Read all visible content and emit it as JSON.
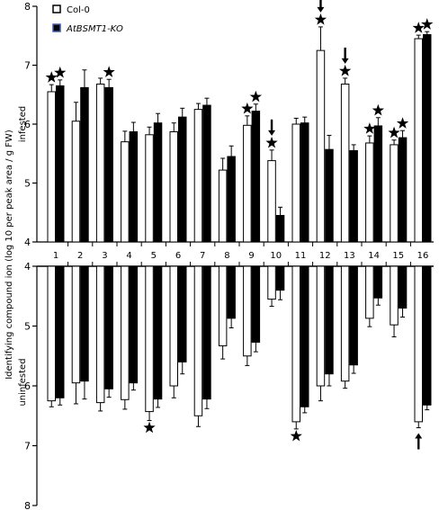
{
  "chart_data": {
    "type": "bar",
    "ylabel": "Identifying compound ion (log 10 per peak area / g FW)",
    "ylim": [
      4,
      8
    ],
    "y_ticks": [
      4,
      5,
      6,
      7,
      8
    ],
    "categories": [
      "1",
      "2",
      "3",
      "4",
      "5",
      "6",
      "7",
      "8",
      "9",
      "10",
      "11",
      "12",
      "13",
      "14",
      "15",
      "16"
    ],
    "panels": [
      {
        "label": "infested",
        "series": [
          {
            "name": "Col-0",
            "color": "#ffffff",
            "values": [
              6.55,
              6.05,
              6.68,
              5.7,
              5.82,
              5.87,
              6.25,
              5.22,
              5.98,
              5.38,
              6.0,
              7.25,
              6.68,
              5.68,
              5.65,
              7.45
            ],
            "errors": [
              0.12,
              0.32,
              0.1,
              0.18,
              0.13,
              0.15,
              0.1,
              0.2,
              0.16,
              0.18,
              0.1,
              0.4,
              0.1,
              0.12,
              0.08,
              0.06
            ]
          },
          {
            "name": "AtBSMT1-KO",
            "color": "#000000",
            "values": [
              6.65,
              6.62,
              6.62,
              5.87,
              6.02,
              6.12,
              6.32,
              5.45,
              6.22,
              4.45,
              6.02,
              5.57,
              5.55,
              5.97,
              5.77,
              7.52
            ],
            "errors": [
              0.1,
              0.3,
              0.14,
              0.16,
              0.16,
              0.15,
              0.12,
              0.18,
              0.12,
              0.14,
              0.1,
              0.24,
              0.1,
              0.14,
              0.12,
              0.05
            ]
          }
        ],
        "stars": [
          {
            "category": "1",
            "series": 0
          },
          {
            "category": "1",
            "series": 1
          },
          {
            "category": "3",
            "series": 1
          },
          {
            "category": "9",
            "series": 0
          },
          {
            "category": "9",
            "series": 1
          },
          {
            "category": "10",
            "series": 0
          },
          {
            "category": "12",
            "series": 0
          },
          {
            "category": "13",
            "series": 0
          },
          {
            "category": "14",
            "series": 0
          },
          {
            "category": "14",
            "series": 1
          },
          {
            "category": "15",
            "series": 0
          },
          {
            "category": "15",
            "series": 1
          },
          {
            "category": "16",
            "series": 0
          },
          {
            "category": "16",
            "series": 1
          }
        ],
        "arrows": [
          {
            "category": "10",
            "series": 0
          },
          {
            "category": "12",
            "series": 0
          },
          {
            "category": "13",
            "series": 0
          }
        ]
      },
      {
        "label": "uninfested",
        "series": [
          {
            "name": "Col-0",
            "color": "#ffffff",
            "values": [
              6.25,
              5.95,
              6.28,
              6.23,
              6.43,
              6.0,
              6.5,
              5.33,
              5.5,
              4.55,
              6.6,
              6.0,
              5.92,
              4.87,
              4.98,
              6.6
            ],
            "errors": [
              0.1,
              0.35,
              0.14,
              0.16,
              0.15,
              0.2,
              0.18,
              0.22,
              0.16,
              0.12,
              0.12,
              0.25,
              0.12,
              0.14,
              0.2,
              0.1
            ]
          },
          {
            "name": "AtBSMT1-KO",
            "color": "#000000",
            "values": [
              6.2,
              5.92,
              6.05,
              5.95,
              6.22,
              5.6,
              6.22,
              4.87,
              5.27,
              4.4,
              6.35,
              5.8,
              5.65,
              4.53,
              4.7,
              6.32
            ],
            "errors": [
              0.12,
              0.3,
              0.14,
              0.12,
              0.14,
              0.2,
              0.16,
              0.16,
              0.16,
              0.16,
              0.1,
              0.2,
              0.14,
              0.12,
              0.15,
              0.08
            ]
          }
        ],
        "stars": [
          {
            "category": "5",
            "series": 0
          },
          {
            "category": "11",
            "series": 0
          }
        ],
        "arrows": [
          {
            "category": "16",
            "series": 0
          }
        ]
      }
    ]
  }
}
